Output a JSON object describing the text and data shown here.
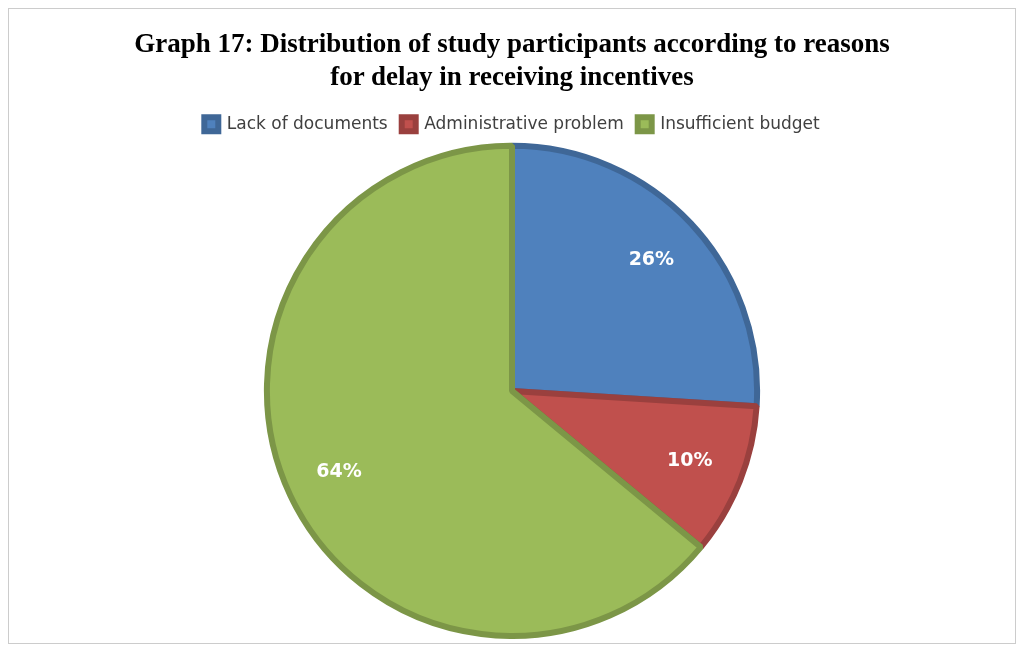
{
  "chart_data": {
    "type": "pie",
    "title": "Graph 17: Distribution of study participants according to reasons for delay in receiving incentives",
    "categories": [
      "Lack of documents",
      "Administrative problem",
      "Insufficient budget"
    ],
    "values": [
      26,
      10,
      64
    ],
    "colors": [
      "#4f81bd",
      "#c0504d",
      "#9bbb59"
    ],
    "value_labels": [
      "26%",
      "10%",
      "64%"
    ],
    "legend": "top"
  }
}
